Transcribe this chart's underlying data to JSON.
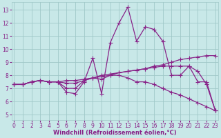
{
  "xlabel": "Windchill (Refroidissement éolien,°C)",
  "bg_color": "#c8e8e8",
  "grid_color": "#a0c8c8",
  "line_color": "#882288",
  "x_ticks": [
    0,
    1,
    2,
    3,
    4,
    5,
    6,
    7,
    8,
    9,
    10,
    11,
    12,
    13,
    14,
    15,
    16,
    17,
    18,
    19,
    20,
    21,
    22,
    23
  ],
  "y_ticks": [
    5,
    6,
    7,
    8,
    9,
    10,
    11,
    12,
    13
  ],
  "ylim": [
    4.6,
    13.6
  ],
  "xlim": [
    -0.3,
    23.3
  ],
  "lines": [
    {
      "x": [
        0,
        1,
        2,
        3,
        4,
        5,
        6,
        7,
        8,
        9,
        10,
        11,
        12,
        13,
        14,
        15,
        16,
        17,
        18,
        19,
        20,
        21,
        22,
        23
      ],
      "y": [
        7.3,
        7.3,
        7.5,
        7.6,
        7.5,
        7.5,
        7.6,
        7.6,
        7.7,
        7.8,
        7.9,
        8.0,
        8.2,
        8.3,
        8.4,
        8.5,
        8.7,
        8.8,
        9.0,
        9.2,
        9.3,
        9.4,
        9.5,
        9.5
      ]
    },
    {
      "x": [
        0,
        1,
        2,
        3,
        4,
        5,
        6,
        7,
        8,
        9,
        10,
        11,
        12,
        13,
        14,
        15,
        16,
        17,
        18,
        19,
        20,
        21,
        22,
        23
      ],
      "y": [
        7.3,
        7.3,
        7.5,
        7.6,
        7.5,
        7.5,
        7.4,
        7.4,
        7.6,
        7.8,
        8.0,
        8.1,
        8.2,
        8.3,
        8.4,
        8.5,
        8.6,
        8.7,
        8.7,
        8.7,
        8.7,
        8.3,
        7.3,
        5.3
      ]
    },
    {
      "x": [
        0,
        1,
        2,
        3,
        4,
        5,
        6,
        7,
        8,
        9,
        10,
        11,
        12,
        13,
        14,
        15,
        16,
        17,
        18,
        19,
        20,
        21,
        22,
        23
      ],
      "y": [
        7.3,
        7.3,
        7.5,
        7.6,
        7.5,
        7.5,
        6.7,
        6.6,
        7.5,
        9.3,
        6.6,
        10.5,
        12.0,
        13.2,
        10.6,
        11.7,
        11.5,
        10.6,
        8.0,
        8.0,
        8.7,
        7.5,
        7.5,
        5.3
      ]
    },
    {
      "x": [
        0,
        1,
        2,
        3,
        4,
        5,
        6,
        7,
        8,
        9,
        10,
        11,
        12,
        13,
        14,
        15,
        16,
        17,
        18,
        19,
        20,
        21,
        22,
        23
      ],
      "y": [
        7.3,
        7.3,
        7.5,
        7.6,
        7.5,
        7.5,
        7.0,
        7.0,
        7.6,
        7.8,
        7.7,
        8.0,
        8.0,
        7.8,
        7.5,
        7.5,
        7.3,
        7.0,
        6.7,
        6.5,
        6.2,
        5.9,
        5.6,
        5.3
      ]
    }
  ],
  "marker": "+",
  "markersize": 4,
  "linewidth": 0.9,
  "tick_fontsize": 5.5,
  "label_fontsize": 6.0
}
